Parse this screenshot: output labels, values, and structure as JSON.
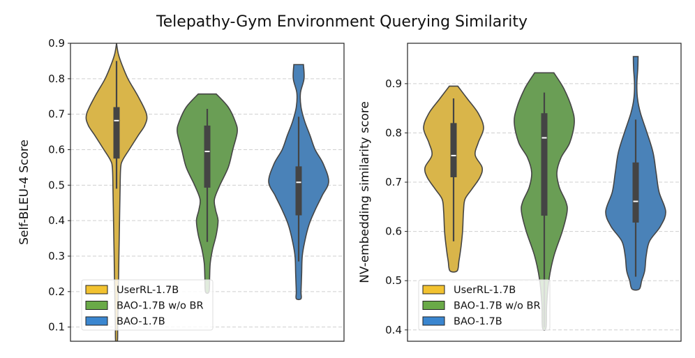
{
  "title": "Telepathy-Gym Environment Querying Similarity",
  "chart_data": [
    {
      "type": "violin",
      "ylabel": "Self-BLEU-4 Score",
      "ylim": [
        0.06,
        0.9
      ],
      "yticks": [
        "0.1",
        "0.2",
        "0.3",
        "0.4",
        "0.5",
        "0.6",
        "0.7",
        "0.8",
        "0.9"
      ],
      "grid": "horizontal dashed",
      "legend_position": "lower-left",
      "series": [
        {
          "name": "UserRL-1.7B",
          "color": "#D9B54A",
          "legend_color": "#F2C230",
          "whisker": [
            0.49,
            0.85
          ],
          "box": [
            0.575,
            0.72
          ],
          "median": 0.682,
          "density": [
            [
              0.9,
              0
            ],
            [
              0.87,
              0.06
            ],
            [
              0.84,
              0.18
            ],
            [
              0.8,
              0.38
            ],
            [
              0.75,
              0.72
            ],
            [
              0.7,
              1.0
            ],
            [
              0.67,
              0.95
            ],
            [
              0.64,
              0.72
            ],
            [
              0.6,
              0.42
            ],
            [
              0.57,
              0.2
            ],
            [
              0.55,
              0.14
            ],
            [
              0.5,
              0.12
            ],
            [
              0.4,
              0.1
            ],
            [
              0.3,
              0.08
            ],
            [
              0.2,
              0.06
            ],
            [
              0.1,
              0.04
            ],
            [
              0.06,
              0.03
            ]
          ]
        },
        {
          "name": "BAO-1.7B w/o BR",
          "color": "#6A9E55",
          "legend_color": "#6AAA48",
          "whisker": [
            0.34,
            0.715
          ],
          "box": [
            0.493,
            0.668
          ],
          "median": 0.595,
          "density": [
            [
              0.757,
              0.3
            ],
            [
              0.72,
              0.7
            ],
            [
              0.68,
              0.93
            ],
            [
              0.65,
              1.0
            ],
            [
              0.6,
              0.85
            ],
            [
              0.55,
              0.7
            ],
            [
              0.5,
              0.42
            ],
            [
              0.46,
              0.24
            ],
            [
              0.43,
              0.28
            ],
            [
              0.4,
              0.36
            ],
            [
              0.36,
              0.3
            ],
            [
              0.32,
              0.18
            ],
            [
              0.28,
              0.1
            ],
            [
              0.24,
              0.08
            ],
            [
              0.2,
              0.06
            ]
          ]
        },
        {
          "name": "BAO-1.7B",
          "color": "#4A82B8",
          "legend_color": "#3A86D0",
          "whisker": [
            0.285,
            0.693
          ],
          "box": [
            0.415,
            0.553
          ],
          "median": 0.508,
          "density": [
            [
              0.84,
              0.16
            ],
            [
              0.8,
              0.18
            ],
            [
              0.76,
              0.06
            ],
            [
              0.72,
              0.08
            ],
            [
              0.68,
              0.2
            ],
            [
              0.64,
              0.38
            ],
            [
              0.6,
              0.55
            ],
            [
              0.56,
              0.82
            ],
            [
              0.51,
              1.0
            ],
            [
              0.47,
              0.78
            ],
            [
              0.43,
              0.55
            ],
            [
              0.39,
              0.35
            ],
            [
              0.34,
              0.2
            ],
            [
              0.3,
              0.12
            ],
            [
              0.25,
              0.1
            ],
            [
              0.2,
              0.08
            ],
            [
              0.18,
              0.08
            ]
          ]
        }
      ]
    },
    {
      "type": "violin",
      "ylabel": "NV-embedding similarity score",
      "ylim": [
        0.377,
        0.982
      ],
      "yticks": [
        "0.4",
        "0.5",
        "0.6",
        "0.7",
        "0.8",
        "0.9"
      ],
      "grid": "horizontal dashed",
      "legend_position": "lower-left",
      "series": [
        {
          "name": "UserRL-1.7B",
          "color": "#D9B54A",
          "legend_color": "#F2C230",
          "whisker": [
            0.58,
            0.87
          ],
          "box": [
            0.71,
            0.82
          ],
          "median": 0.754,
          "density": [
            [
              0.895,
              0.14
            ],
            [
              0.87,
              0.45
            ],
            [
              0.84,
              0.82
            ],
            [
              0.81,
              1.0
            ],
            [
              0.78,
              0.82
            ],
            [
              0.755,
              0.72
            ],
            [
              0.73,
              0.95
            ],
            [
              0.71,
              0.88
            ],
            [
              0.685,
              0.6
            ],
            [
              0.665,
              0.38
            ],
            [
              0.64,
              0.33
            ],
            [
              0.6,
              0.3
            ],
            [
              0.57,
              0.25
            ],
            [
              0.54,
              0.18
            ],
            [
              0.52,
              0.12
            ]
          ]
        },
        {
          "name": "BAO-1.7B w/o BR",
          "color": "#6A9E55",
          "legend_color": "#6AAA48",
          "whisker": [
            0.405,
            0.882
          ],
          "box": [
            0.632,
            0.84
          ],
          "median": 0.79,
          "density": [
            [
              0.922,
              0.32
            ],
            [
              0.89,
              0.65
            ],
            [
              0.85,
              0.92
            ],
            [
              0.82,
              1.0
            ],
            [
              0.78,
              0.85
            ],
            [
              0.75,
              0.56
            ],
            [
              0.72,
              0.42
            ],
            [
              0.69,
              0.5
            ],
            [
              0.66,
              0.72
            ],
            [
              0.64,
              0.76
            ],
            [
              0.6,
              0.6
            ],
            [
              0.55,
              0.32
            ],
            [
              0.5,
              0.15
            ],
            [
              0.45,
              0.08
            ],
            [
              0.405,
              0.06
            ]
          ]
        },
        {
          "name": "BAO-1.7B",
          "color": "#4A82B8",
          "legend_color": "#3A86D0",
          "whisker": [
            0.508,
            0.827
          ],
          "box": [
            0.618,
            0.74
          ],
          "median": 0.661,
          "density": [
            [
              0.955,
              0.08
            ],
            [
              0.93,
              0.07
            ],
            [
              0.9,
              0.04
            ],
            [
              0.87,
              0.06
            ],
            [
              0.84,
              0.16
            ],
            [
              0.8,
              0.38
            ],
            [
              0.76,
              0.58
            ],
            [
              0.72,
              0.68
            ],
            [
              0.68,
              0.78
            ],
            [
              0.64,
              1.0
            ],
            [
              0.61,
              0.82
            ],
            [
              0.58,
              0.46
            ],
            [
              0.55,
              0.35
            ],
            [
              0.52,
              0.3
            ],
            [
              0.5,
              0.2
            ],
            [
              0.483,
              0.12
            ]
          ]
        }
      ]
    }
  ]
}
